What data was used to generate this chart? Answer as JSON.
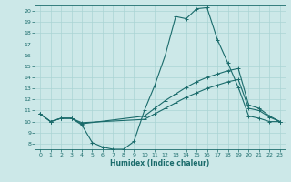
{
  "xlabel": "Humidex (Indice chaleur)",
  "xlim": [
    -0.5,
    23.5
  ],
  "ylim": [
    7.5,
    20.5
  ],
  "yticks": [
    8,
    9,
    10,
    11,
    12,
    13,
    14,
    15,
    16,
    17,
    18,
    19,
    20
  ],
  "xticks": [
    0,
    1,
    2,
    3,
    4,
    5,
    6,
    7,
    8,
    9,
    10,
    11,
    12,
    13,
    14,
    15,
    16,
    17,
    18,
    19,
    20,
    21,
    22,
    23
  ],
  "background_color": "#cce8e8",
  "line_color": "#1a6b6b",
  "grid_color": "#aad4d4",
  "curves": [
    {
      "x": [
        0,
        1,
        2,
        3,
        4,
        5,
        6,
        7,
        8,
        9,
        10,
        11,
        12,
        13,
        14,
        15,
        16,
        17,
        18,
        19,
        20,
        21,
        22,
        23
      ],
      "y": [
        10.7,
        10.0,
        10.3,
        10.3,
        9.7,
        8.1,
        7.7,
        7.5,
        7.5,
        8.2,
        11.0,
        13.3,
        16.0,
        19.5,
        19.3,
        20.2,
        20.3,
        17.4,
        15.3,
        13.1,
        10.5,
        10.3,
        10.0,
        10.0
      ]
    },
    {
      "x": [
        0,
        1,
        2,
        3,
        4,
        10,
        11,
        12,
        13,
        14,
        15,
        16,
        17,
        18,
        19,
        20,
        21,
        22,
        23
      ],
      "y": [
        10.7,
        10.0,
        10.3,
        10.3,
        9.8,
        10.5,
        11.2,
        11.9,
        12.5,
        13.1,
        13.6,
        14.0,
        14.3,
        14.6,
        14.8,
        11.5,
        11.2,
        10.5,
        10.0
      ]
    },
    {
      "x": [
        0,
        1,
        2,
        3,
        4,
        10,
        11,
        12,
        13,
        14,
        15,
        16,
        17,
        18,
        19,
        20,
        21,
        22,
        23
      ],
      "y": [
        10.7,
        10.0,
        10.3,
        10.3,
        9.9,
        10.2,
        10.7,
        11.2,
        11.7,
        12.2,
        12.6,
        13.0,
        13.3,
        13.6,
        13.8,
        11.2,
        11.0,
        10.4,
        10.0
      ]
    }
  ]
}
